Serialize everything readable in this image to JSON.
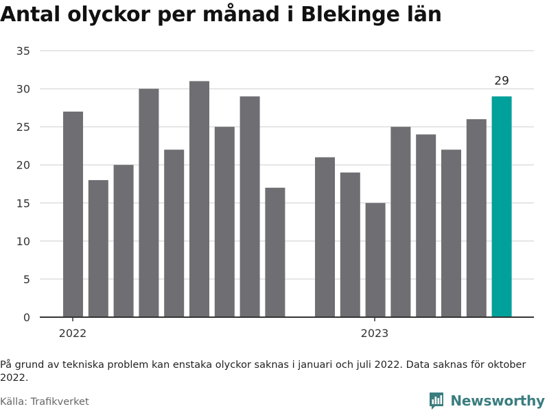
{
  "title": "Antal olyckor per månad i Blekinge län",
  "note": "På grund av tekniska problem kan enstaka olyckor saknas i januari och juli 2022. Data saknas för oktober 2022.",
  "source": "Källa: Trafikverket",
  "brand": {
    "name": "Newsworthy",
    "icon": "bar-chart-logo-icon"
  },
  "colors": {
    "bar": "#6e6e73",
    "highlight": "#00a19a",
    "grid": "#dddddd",
    "axis": "#333333"
  },
  "chart_data": {
    "type": "bar",
    "x_tick_labels": [
      "2022",
      "2023"
    ],
    "ylim": [
      0,
      35
    ],
    "y_ticks": [
      0,
      5,
      10,
      15,
      20,
      25,
      30,
      35
    ],
    "grid": "horizontal",
    "highlight_label": "29",
    "series": [
      {
        "year": "2022",
        "values": [
          27,
          18,
          20,
          30,
          22,
          31,
          25,
          29,
          17
        ]
      },
      {
        "year": "2023",
        "values": [
          21,
          19,
          15,
          25,
          24,
          22,
          26,
          29
        ]
      }
    ]
  }
}
